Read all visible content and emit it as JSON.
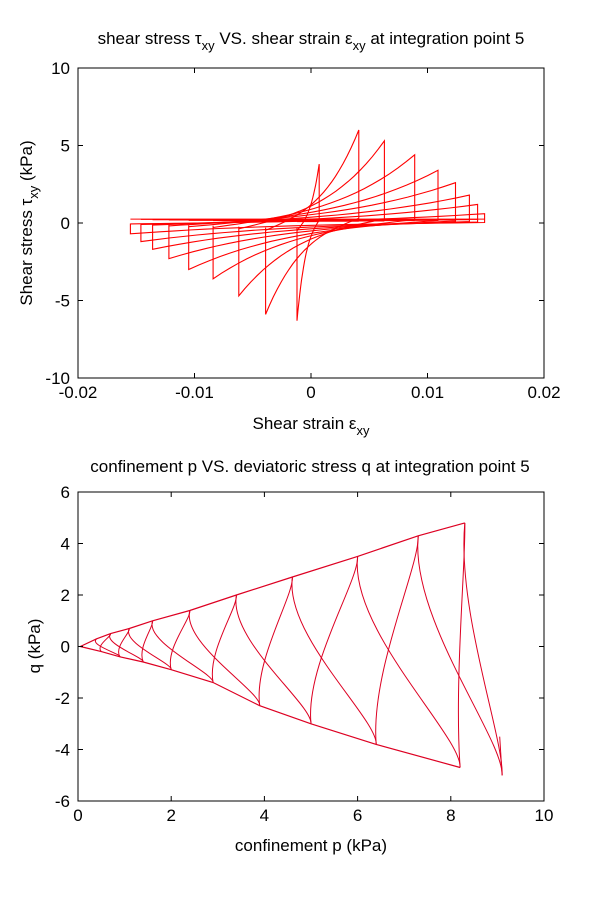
{
  "chart_data": [
    {
      "type": "line",
      "title": "shear stress τxy VS. shear strain εxy at integration point 5",
      "title_parts": {
        "a": "shear stress ",
        "sym1": "τ",
        "sub1": "xy",
        "b": " VS. shear strain ",
        "sym2": "ε",
        "sub2": "xy",
        "c": " at integration point 5"
      },
      "xlabel": "Shear strain εxy",
      "xlabel_parts": {
        "a": "Shear strain ",
        "sym": "ε",
        "sub": "xy"
      },
      "ylabel": "Shear stress τxy (kPa)",
      "ylabel_parts": {
        "a": "Shear stress ",
        "sym": "τ",
        "sub": "xy",
        "b": " (kPa)"
      },
      "xlim": [
        -0.02,
        0.02
      ],
      "ylim": [
        -10,
        10
      ],
      "xticks": [
        -0.02,
        -0.01,
        0,
        0.01,
        0.02
      ],
      "xtick_labels": [
        "-0.02",
        "-0.01",
        "0",
        "0.01",
        "0.02"
      ],
      "yticks": [
        -10,
        -5,
        0,
        5,
        10
      ],
      "ytick_labels": [
        "-10",
        "-5",
        "0",
        "5",
        "10"
      ],
      "grid": false,
      "color": "#ff0000",
      "series": [
        {
          "name": "hysteresis",
          "cycles": [
            {
              "x_pos": 0.0149,
              "tau_pos": 0.6,
              "x_neg": -0.0155,
              "tau_neg": -0.7
            },
            {
              "x_pos": 0.0143,
              "tau_pos": 1.2,
              "x_neg": -0.0146,
              "tau_neg": -1.2
            },
            {
              "x_pos": 0.0136,
              "tau_pos": 1.8,
              "x_neg": -0.0136,
              "tau_neg": -1.7
            },
            {
              "x_pos": 0.0124,
              "tau_pos": 2.6,
              "x_neg": -0.0122,
              "tau_neg": -2.3
            },
            {
              "x_pos": 0.0109,
              "tau_pos": 3.4,
              "x_neg": -0.0105,
              "tau_neg": -3.0
            },
            {
              "x_pos": 0.0089,
              "tau_pos": 4.4,
              "x_neg": -0.0084,
              "tau_neg": -3.6
            },
            {
              "x_pos": 0.0063,
              "tau_pos": 5.3,
              "x_neg": -0.0062,
              "tau_neg": -4.7
            },
            {
              "x_pos": 0.0041,
              "tau_pos": 6.0,
              "x_neg": -0.0039,
              "tau_neg": -5.9
            },
            {
              "x_pos": 0.0007,
              "tau_pos": 3.8,
              "x_neg": -0.0012,
              "tau_neg": -6.3
            }
          ]
        }
      ]
    },
    {
      "type": "line",
      "title": "confinement p VS. deviatoric stress q at integration point 5",
      "xlabel": "confinement p (kPa)",
      "ylabel": "q (kPa)",
      "xlim": [
        0,
        10
      ],
      "ylim": [
        -6,
        6
      ],
      "xticks": [
        0,
        2,
        4,
        6,
        8,
        10
      ],
      "xtick_labels": [
        "0",
        "2",
        "4",
        "6",
        "8",
        "10"
      ],
      "yticks": [
        -6,
        -4,
        -2,
        0,
        2,
        4,
        6
      ],
      "ytick_labels": [
        "-6",
        "-4",
        "-2",
        "0",
        "2",
        "4",
        "6"
      ],
      "grid": false,
      "color": "#dd0022",
      "series": [
        {
          "name": "stress-path",
          "upper_peaks": [
            {
              "p": 0.4,
              "q": 0.3
            },
            {
              "p": 0.7,
              "q": 0.5
            },
            {
              "p": 1.1,
              "q": 0.7
            },
            {
              "p": 1.6,
              "q": 1.0
            },
            {
              "p": 2.4,
              "q": 1.4
            },
            {
              "p": 3.4,
              "q": 2.0
            },
            {
              "p": 4.6,
              "q": 2.7
            },
            {
              "p": 6.0,
              "q": 3.5
            },
            {
              "p": 7.3,
              "q": 4.3
            },
            {
              "p": 8.3,
              "q": 4.8
            }
          ],
          "lower_peaks": [
            {
              "p": 0.5,
              "q": -0.2
            },
            {
              "p": 0.9,
              "q": -0.4
            },
            {
              "p": 1.4,
              "q": -0.6
            },
            {
              "p": 2.0,
              "q": -0.9
            },
            {
              "p": 2.9,
              "q": -1.4
            },
            {
              "p": 3.9,
              "q": -2.3
            },
            {
              "p": 5.0,
              "q": -3.0
            },
            {
              "p": 6.4,
              "q": -3.8
            },
            {
              "p": 8.2,
              "q": -4.7
            },
            {
              "p": 9.1,
              "q": -5.0
            }
          ]
        }
      ]
    }
  ]
}
